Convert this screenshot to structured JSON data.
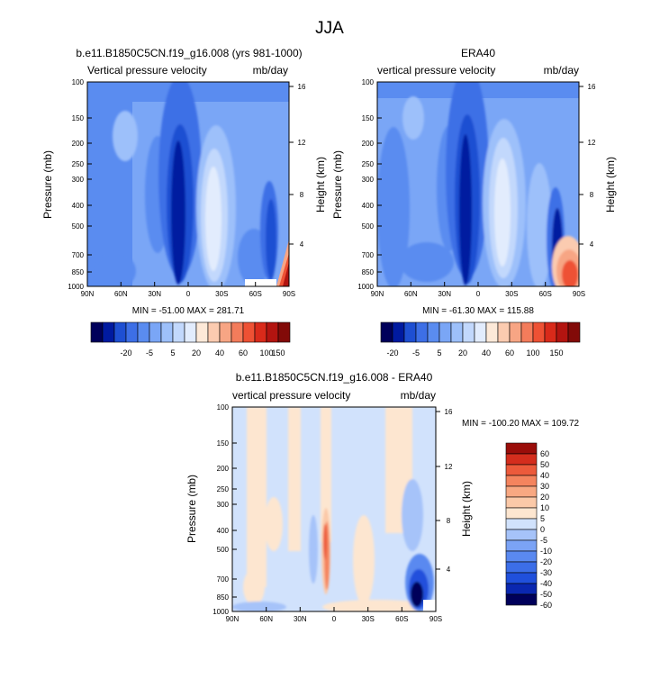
{
  "page": {
    "title": "JJA"
  },
  "colors": {
    "full_scale": [
      "#00005a",
      "#001aa0",
      "#1e4fd2",
      "#3d6fe6",
      "#5a8cf0",
      "#7aa6f6",
      "#9dc0fa",
      "#c2d8fc",
      "#e2ecfd",
      "#fde9d8",
      "#fbcbb0",
      "#f7a584",
      "#f37c5b",
      "#ee5134",
      "#d92a1a",
      "#b31410",
      "#820a08"
    ],
    "diff_scale": [
      "#00005a",
      "#0a27b0",
      "#2050dc",
      "#3c6ee8",
      "#5a89f0",
      "#7ba3f5",
      "#a6c3f9",
      "#d1e2fc",
      "#fde6d0",
      "#fbc9a8",
      "#f8a882",
      "#f4845e",
      "#ec5a3b",
      "#d42d1d",
      "#9a0d0a"
    ]
  },
  "panels": {
    "model": {
      "title": "b.e11.B1850C5CN.f19_g16.008 (yrs 981-1000)",
      "left_label": "Vertical pressure velocity",
      "right_label": "mb/day",
      "stats": "MIN = -51.00   MAX = 281.71"
    },
    "obs": {
      "title": "ERA40",
      "left_label": "vertical pressure velocity",
      "right_label": "mb/day",
      "stats": "MIN = -61.30   MAX = 115.88"
    },
    "diff": {
      "title": "b.e11.B1850C5CN.f19_g16.008 - ERA40",
      "left_label": "vertical pressure velocity",
      "right_label": "mb/day",
      "stats": "MIN = -100.20   MAX = 109.72"
    }
  },
  "chart_data": [
    {
      "type": "heatmap",
      "title": "b.e11.B1850C5CN.f19_g16.008 (yrs 981-1000)",
      "variable": "Vertical pressure velocity",
      "units": "mb/day",
      "xlabel": "",
      "ylabel": "Pressure (mb)",
      "y2label": "Height (km)",
      "x_ticks": [
        "90N",
        "60N",
        "30N",
        "0",
        "30S",
        "60S",
        "90S"
      ],
      "y_ticks": [
        "100",
        "150",
        "200",
        "250",
        "300",
        "400",
        "500",
        "700",
        "850",
        "1000"
      ],
      "y2_ticks": [
        "16",
        "12",
        "8",
        "4"
      ],
      "lat_range": [
        90,
        -90
      ],
      "pressure_range": [
        100,
        1000
      ],
      "min": -51.0,
      "max": 281.71,
      "colorbar_labels": [
        "-20",
        "-5",
        "5",
        "20",
        "40",
        "60",
        "100",
        "150"
      ]
    },
    {
      "type": "heatmap",
      "title": "ERA40",
      "variable": "vertical pressure velocity",
      "units": "mb/day",
      "xlabel": "",
      "ylabel": "Pressure (mb)",
      "y2label": "Height (km)",
      "x_ticks": [
        "90N",
        "60N",
        "30N",
        "0",
        "30S",
        "60S",
        "90S"
      ],
      "y_ticks": [
        "100",
        "150",
        "200",
        "250",
        "300",
        "400",
        "500",
        "700",
        "850",
        "1000"
      ],
      "y2_ticks": [
        "16",
        "12",
        "8",
        "4"
      ],
      "lat_range": [
        90,
        -90
      ],
      "pressure_range": [
        100,
        1000
      ],
      "min": -61.3,
      "max": 115.88,
      "colorbar_labels": [
        "-20",
        "-5",
        "5",
        "20",
        "40",
        "60",
        "100",
        "150"
      ]
    },
    {
      "type": "heatmap",
      "title": "b.e11.B1850C5CN.f19_g16.008 - ERA40",
      "variable": "vertical pressure velocity",
      "units": "mb/day",
      "xlabel": "",
      "ylabel": "Pressure (mb)",
      "y2label": "Height (km)",
      "x_ticks": [
        "90N",
        "60N",
        "30N",
        "0",
        "30S",
        "60S",
        "90S"
      ],
      "y_ticks": [
        "100",
        "150",
        "200",
        "250",
        "300",
        "400",
        "500",
        "700",
        "850",
        "1000"
      ],
      "y2_ticks": [
        "16",
        "12",
        "8",
        "4"
      ],
      "lat_range": [
        90,
        -90
      ],
      "pressure_range": [
        100,
        1000
      ],
      "min": -100.2,
      "max": 109.72,
      "colorbar_labels": [
        "60",
        "50",
        "40",
        "30",
        "20",
        "10",
        "5",
        "0",
        "-5",
        "-10",
        "-20",
        "-30",
        "-40",
        "-50",
        "-60"
      ]
    }
  ]
}
